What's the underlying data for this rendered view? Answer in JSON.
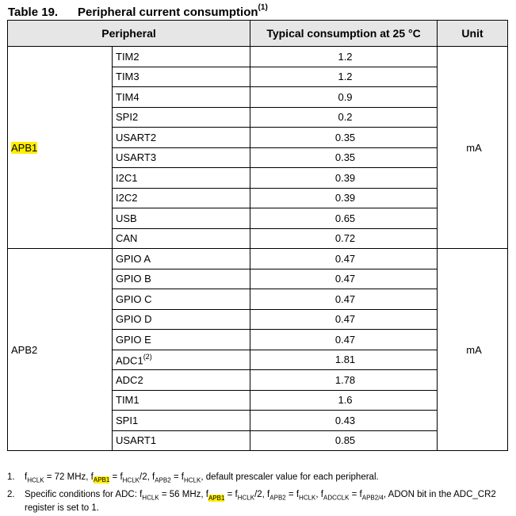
{
  "caption": {
    "number": "Table 19.",
    "title": "Peripheral current consumption",
    "note_ref": "(1)"
  },
  "headers": {
    "peripheral": "Peripheral",
    "consumption": "Typical consumption at 25 °C",
    "unit": "Unit"
  },
  "groups": [
    {
      "name": "APB1",
      "unit": "mA",
      "rows": [
        {
          "peripheral": "TIM2",
          "value": "1.2"
        },
        {
          "peripheral": "TIM3",
          "value": "1.2"
        },
        {
          "peripheral": "TIM4",
          "value": "0.9"
        },
        {
          "peripheral": "SPI2",
          "value": "0.2"
        },
        {
          "peripheral": "USART2",
          "value": "0.35"
        },
        {
          "peripheral": "USART3",
          "value": "0.35"
        },
        {
          "peripheral": "I2C1",
          "value": "0.39"
        },
        {
          "peripheral": "I2C2",
          "value": "0.39"
        },
        {
          "peripheral": "USB",
          "value": "0.65"
        },
        {
          "peripheral": "CAN",
          "value": "0.72"
        }
      ]
    },
    {
      "name": "APB2",
      "unit": "mA",
      "rows": [
        {
          "peripheral": "GPIO A",
          "value": "0.47"
        },
        {
          "peripheral": "GPIO B",
          "value": "0.47"
        },
        {
          "peripheral": "GPIO C",
          "value": "0.47"
        },
        {
          "peripheral": "GPIO D",
          "value": "0.47"
        },
        {
          "peripheral": "GPIO E",
          "value": "0.47"
        },
        {
          "peripheral": "ADC1",
          "note": "(2)",
          "value": "1.81"
        },
        {
          "peripheral": "ADC2",
          "value": "1.78"
        },
        {
          "peripheral": "TIM1",
          "value": "1.6"
        },
        {
          "peripheral": "SPI1",
          "value": "0.43"
        },
        {
          "peripheral": "USART1",
          "value": "0.85"
        }
      ]
    }
  ],
  "footnotes": {
    "fn1": {
      "num": "1.",
      "t1": "f",
      "s1": "HCLK",
      "t2": " = 72 MHz, ",
      "t3": "f",
      "s3": "APB1",
      "t4": " = f",
      "s4": "HCLK",
      "t5": "/2, f",
      "s5": "APB2",
      "t6": " = f",
      "s6": "HCLK",
      "t7": ", default prescaler value for each peripheral."
    },
    "fn2": {
      "num": "2.",
      "t1": "Specific conditions for ADC: f",
      "s1": "HCLK",
      "t2": " = 56 MHz, f",
      "s2": "APB1",
      "t3": " = f",
      "s3": "HCLK",
      "t4": "/2, f",
      "s4": "APB2",
      "t5": " = f",
      "s5": "HCLK",
      "t6": ", f",
      "s6": "ADCCLK",
      "t7": " = f",
      "s7": "APB2/4",
      "t8": ", ADON bit in the ADC_CR2 register is set to 1."
    }
  },
  "colors": {
    "highlight": "#ffee00",
    "header_bg": "#e6e6e6"
  }
}
